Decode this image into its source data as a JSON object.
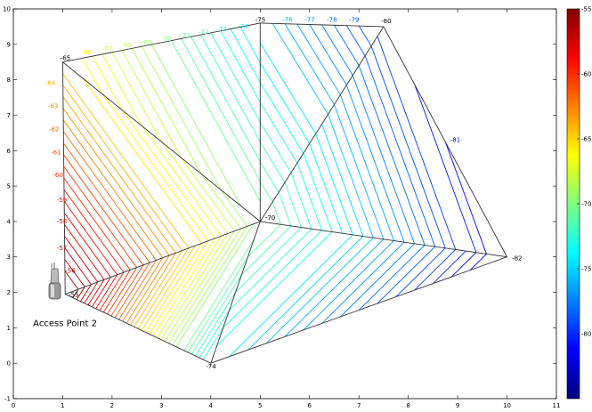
{
  "chart_data": {
    "type": "contour",
    "xlim": [
      0,
      11
    ],
    "ylim": [
      -1,
      10
    ],
    "xticks": [
      0,
      1,
      2,
      3,
      4,
      5,
      6,
      7,
      8,
      9,
      10,
      11
    ],
    "yticks": [
      -1,
      0,
      1,
      2,
      3,
      4,
      5,
      6,
      7,
      8,
      9,
      10
    ],
    "grid": false,
    "colorbar": {
      "min": -85,
      "max": -55,
      "ticks": [
        -55,
        -60,
        -65,
        -70,
        -75,
        -80
      ],
      "colormap": [
        "#7f0000",
        "#ff0000",
        "#ff7f00",
        "#ffff00",
        "#7fff7f",
        "#00ffff",
        "#007fff",
        "#0000ff",
        "#00007f"
      ]
    },
    "vertices": [
      {
        "id": "A",
        "x": 1.05,
        "y": 1.95,
        "value": -55
      },
      {
        "id": "B",
        "x": 1.0,
        "y": 8.5,
        "value": -65
      },
      {
        "id": "C",
        "x": 4.0,
        "y": 0.0,
        "value": -74
      },
      {
        "id": "D",
        "x": 5.0,
        "y": 9.6,
        "value": -75
      },
      {
        "id": "E",
        "x": 7.5,
        "y": 9.5,
        "value": -80
      },
      {
        "id": "F",
        "x": 5.0,
        "y": 4.0,
        "value": -70
      },
      {
        "id": "G",
        "x": 10.0,
        "y": 3.0,
        "value": -82
      },
      {
        "id": "H",
        "x": 8.75,
        "y": 6.25,
        "value": -81
      }
    ],
    "triangles": [
      [
        "A",
        "B",
        "F"
      ],
      [
        "A",
        "F",
        "C"
      ],
      [
        "B",
        "D",
        "F"
      ],
      [
        "D",
        "E",
        "F"
      ],
      [
        "F",
        "E",
        "G"
      ],
      [
        "F",
        "G",
        "C"
      ]
    ],
    "contour_labels": [
      {
        "text": "-55",
        "x": 1.12,
        "y": 1.88
      },
      {
        "text": "-56",
        "x": 1.05,
        "y": 2.55
      },
      {
        "text": "-57",
        "x": 0.88,
        "y": 3.2
      },
      {
        "text": "-58",
        "x": 0.88,
        "y": 3.95
      },
      {
        "text": "-59",
        "x": 0.88,
        "y": 4.55
      },
      {
        "text": "-60",
        "x": 0.8,
        "y": 5.25
      },
      {
        "text": "-61",
        "x": 0.76,
        "y": 5.9
      },
      {
        "text": "-62",
        "x": 0.72,
        "y": 6.55
      },
      {
        "text": "-63",
        "x": 0.7,
        "y": 7.2
      },
      {
        "text": "-64",
        "x": 0.65,
        "y": 7.85
      },
      {
        "text": "-65",
        "x": 0.95,
        "y": 8.55
      },
      {
        "text": "-66",
        "x": 1.38,
        "y": 8.72
      },
      {
        "text": "-67",
        "x": 1.8,
        "y": 8.82
      },
      {
        "text": "-68",
        "x": 2.2,
        "y": 8.92
      },
      {
        "text": "-69",
        "x": 2.6,
        "y": 9.0
      },
      {
        "text": "-70",
        "x": 3.0,
        "y": 9.1
      },
      {
        "text": "-71",
        "x": 3.38,
        "y": 9.2
      },
      {
        "text": "-72",
        "x": 3.75,
        "y": 9.28
      },
      {
        "text": "-73",
        "x": 4.12,
        "y": 9.37
      },
      {
        "text": "-74",
        "x": 4.55,
        "y": 9.45
      },
      {
        "text": "-75",
        "x": 4.9,
        "y": 9.63
      },
      {
        "text": "-76",
        "x": 5.45,
        "y": 9.63
      },
      {
        "text": "-77",
        "x": 5.9,
        "y": 9.63
      },
      {
        "text": "-78",
        "x": 6.35,
        "y": 9.63
      },
      {
        "text": "-79",
        "x": 6.8,
        "y": 9.63
      },
      {
        "text": "-80",
        "x": 7.45,
        "y": 9.6
      },
      {
        "text": "-81",
        "x": 8.85,
        "y": 6.25
      },
      {
        "text": "-82",
        "x": 10.1,
        "y": 2.9
      },
      {
        "text": "-70",
        "x": 5.1,
        "y": 4.05
      },
      {
        "text": "-74",
        "x": 3.9,
        "y": -0.15
      }
    ],
    "annotations": [
      {
        "text": "Access Point 2",
        "x": 0.4,
        "y": 1.05
      }
    ]
  }
}
